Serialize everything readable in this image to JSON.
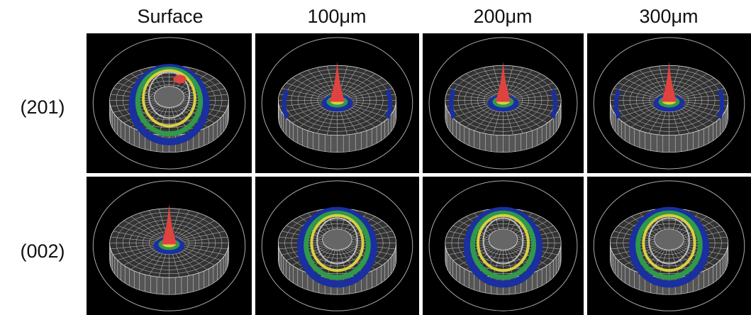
{
  "columns": [
    "Surface",
    "100μm",
    "200μm",
    "300μm"
  ],
  "rows": [
    "(201)",
    "(002)"
  ]
}
